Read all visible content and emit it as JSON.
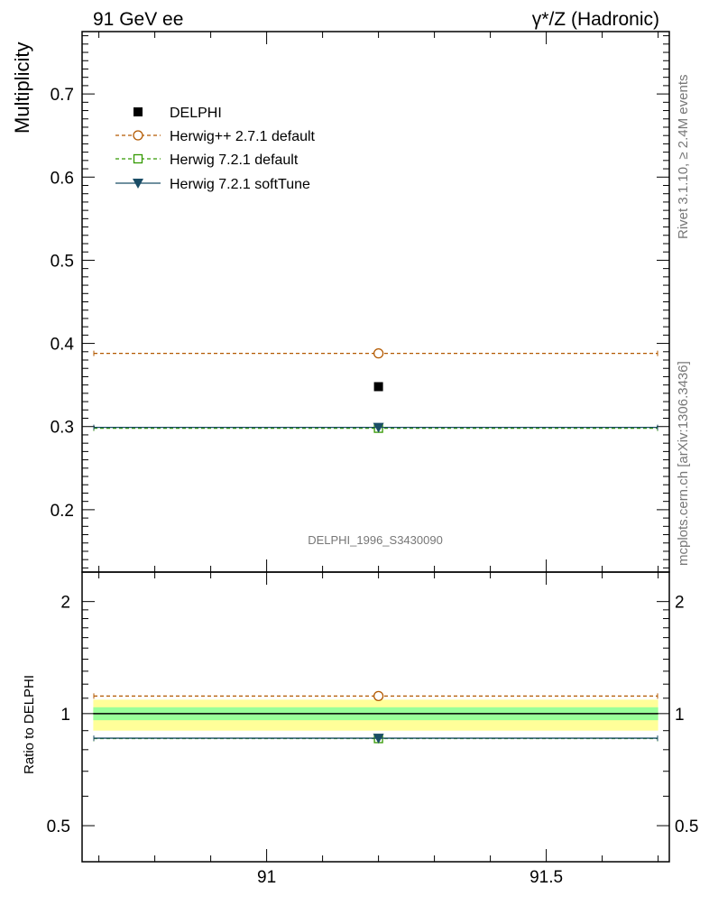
{
  "header": {
    "left": "91 GeV ee",
    "right": "γ*/Z (Hadronic)"
  },
  "side_labels": {
    "rivet": "Rivet 3.1.10, ≥ 2.4M events",
    "mcplots": "mcplots.cern.ch [arXiv:1306.3436]"
  },
  "watermark": "DELPHI_1996_S3430090",
  "chart_data": [
    {
      "type": "scatter",
      "ylabel": "Multiplicity",
      "xlim": [
        90.67,
        91.72
      ],
      "ylim": [
        0.125,
        0.775
      ],
      "yticks": [
        "0.2",
        "0.3",
        "0.4",
        "0.5",
        "0.6",
        "0.7"
      ],
      "x_bin": [
        90.67,
        91.72
      ],
      "x_point": 91.2,
      "legend_position": "top-left",
      "series": [
        {
          "name": "DELPHI",
          "y": 0.348,
          "color": "#000000",
          "marker": "filled-square",
          "line": "none"
        },
        {
          "name": "Herwig++ 2.7.1 default",
          "y": 0.388,
          "color": "#b35900",
          "marker": "open-circle",
          "line": "dashed"
        },
        {
          "name": "Herwig 7.2.1 default",
          "y": 0.298,
          "color": "#339900",
          "marker": "open-square",
          "line": "dashed"
        },
        {
          "name": "Herwig 7.2.1 softTune",
          "y": 0.299,
          "color": "#1a4d66",
          "marker": "filled-triangle-down",
          "line": "solid"
        }
      ]
    },
    {
      "type": "scatter",
      "ylabel": "Ratio to DELPHI",
      "xlim": [
        90.67,
        91.72
      ],
      "ylim": [
        0.4,
        2.4
      ],
      "log_y": true,
      "yticks": [
        "0.5",
        "1",
        "2"
      ],
      "xticks": [
        "91",
        "91.5"
      ],
      "band_outer": [
        0.9,
        1.09
      ],
      "band_inner": [
        0.96,
        1.04
      ],
      "series": [
        {
          "name": "Herwig++ 2.7.1 default",
          "y": 1.115,
          "color": "#b35900"
        },
        {
          "name": "Herwig 7.2.1 default",
          "y": 0.857,
          "color": "#339900"
        },
        {
          "name": "Herwig 7.2.1 softTune",
          "y": 0.859,
          "color": "#1a4d66"
        }
      ]
    }
  ]
}
